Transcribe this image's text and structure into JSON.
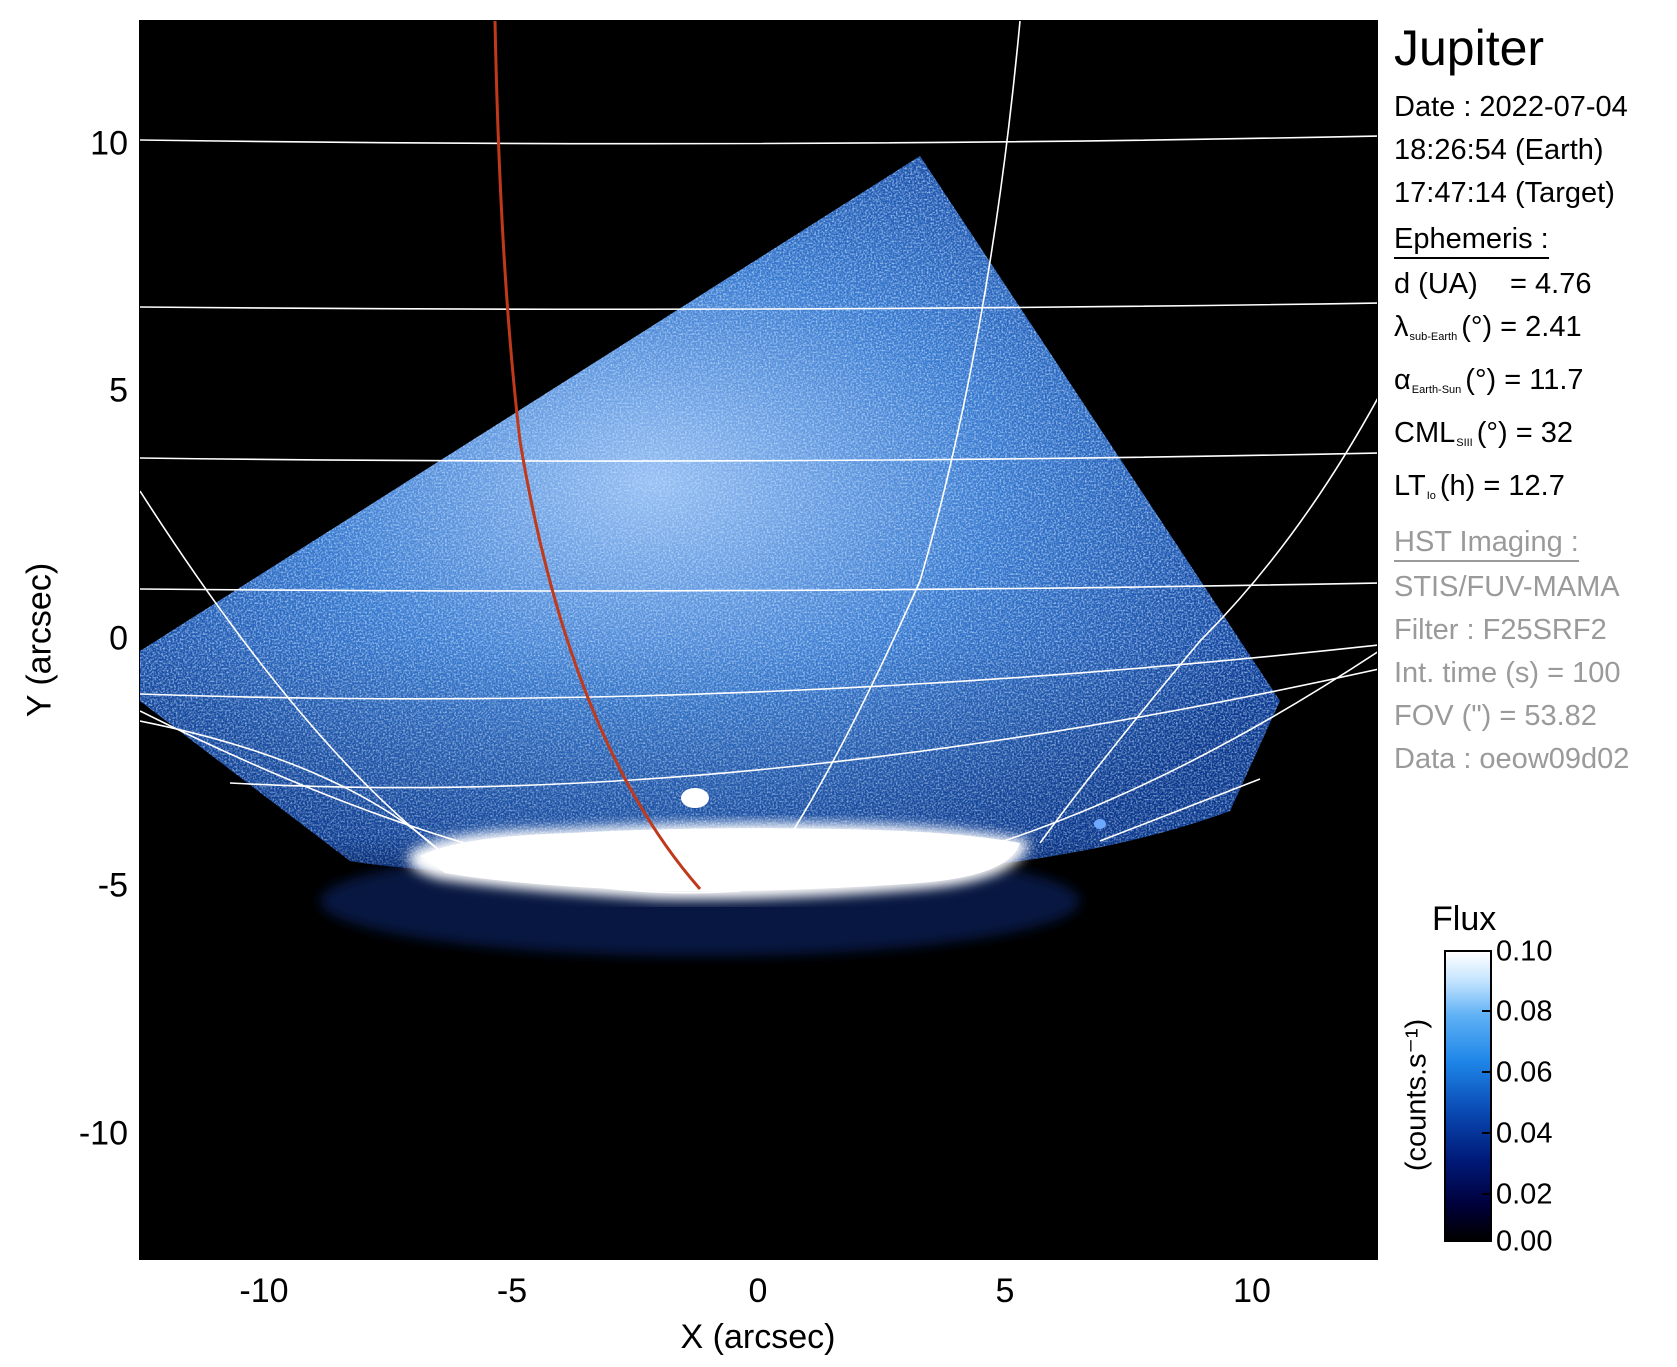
{
  "image": {
    "x_axis_label": "X (arcsec)",
    "y_axis_label": "Y (arcsec)",
    "x_ticks": [
      "-10",
      "-5",
      "0",
      "5",
      "10"
    ],
    "y_ticks": [
      "10",
      "5",
      "0",
      "-5",
      "-10"
    ],
    "colors": {
      "background": "#000000",
      "io_footpath_line": "#c0391b",
      "grid_lines": "#ffffff",
      "emission": "#2f7fe0"
    }
  },
  "panel": {
    "title": "Jupiter",
    "date_line": "Date : 2022-07-04",
    "earth_time": "18:26:54 (Earth)",
    "target_time": "17:47:14 (Target)",
    "ephemeris_header": "Ephemeris :",
    "distance": "d (UA)    = 4.76",
    "lambda_symbol": "λ",
    "lambda_sub": "sub-Earth",
    "lambda_value": "(°) = 2.41",
    "alpha_symbol": "α",
    "alpha_sub": "Earth-Sun",
    "alpha_value": "(°) = 11.7",
    "cml_symbol": "CML",
    "cml_sub": "SIII",
    "cml_value": "(°) = 32",
    "lt_symbol": "LT",
    "lt_sub": "Io",
    "lt_value": "(h) = 12.7",
    "hst_header": "HST Imaging :",
    "instrument": "STIS/FUV-MAMA",
    "filter": "Filter : F25SRF2",
    "int_time": "Int. time (s) = 100",
    "fov": "FOV (\") = 53.82",
    "dataset": "Data : oeow09d02"
  },
  "colorbar": {
    "title": "Flux",
    "unit": "(counts.s⁻¹)",
    "ticks": [
      "0.10",
      "0.08",
      "0.06",
      "0.04",
      "0.02",
      "0.00"
    ]
  }
}
